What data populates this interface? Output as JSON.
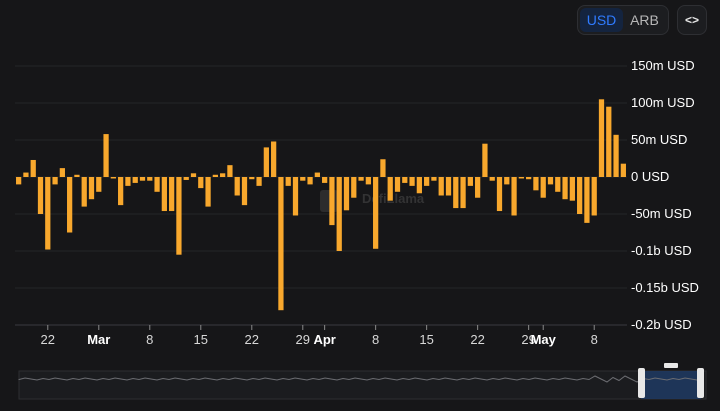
{
  "controls": {
    "currency_options": [
      "USD",
      "ARB"
    ],
    "active_currency": "USD",
    "embed_icon": "<>"
  },
  "watermark": "DefiLlama",
  "colors": {
    "bar": "#f8a82d",
    "background": "#161618",
    "active": "#2f7bff"
  },
  "chart_data": {
    "type": "bar",
    "ylabel_unit": "USD",
    "ylim": [
      -200000000,
      150000000
    ],
    "y_ticks": [
      {
        "value": 150000000,
        "label": "150m USD"
      },
      {
        "value": 100000000,
        "label": "100m USD"
      },
      {
        "value": 50000000,
        "label": "50m USD"
      },
      {
        "value": 0,
        "label": "0 USD"
      },
      {
        "value": -50000000,
        "label": "-50m USD"
      },
      {
        "value": -100000000,
        "label": "-0.1b USD"
      },
      {
        "value": -150000000,
        "label": "-0.15b USD"
      },
      {
        "value": -200000000,
        "label": "-0.2b USD"
      }
    ],
    "x_ticks": [
      {
        "index": 4,
        "label": "22",
        "month": false
      },
      {
        "index": 11,
        "label": "Mar",
        "month": true
      },
      {
        "index": 18,
        "label": "8",
        "month": false
      },
      {
        "index": 25,
        "label": "15",
        "month": false
      },
      {
        "index": 32,
        "label": "22",
        "month": false
      },
      {
        "index": 39,
        "label": "29",
        "month": false
      },
      {
        "index": 42,
        "label": "Apr",
        "month": true
      },
      {
        "index": 49,
        "label": "8",
        "month": false
      },
      {
        "index": 56,
        "label": "15",
        "month": false
      },
      {
        "index": 63,
        "label": "22",
        "month": false
      },
      {
        "index": 70,
        "label": "29",
        "month": false
      },
      {
        "index": 72,
        "label": "May",
        "month": true
      },
      {
        "index": 79,
        "label": "8",
        "month": false
      }
    ],
    "values": [
      -10000000,
      6000000,
      23000000,
      -50000000,
      -98000000,
      -10000000,
      12000000,
      -75000000,
      3000000,
      -40000000,
      -30000000,
      -20000000,
      58000000,
      -2000000,
      -38000000,
      -12000000,
      -8000000,
      -5000000,
      -5000000,
      -20000000,
      -46000000,
      -46000000,
      -105000000,
      -4000000,
      5000000,
      -15000000,
      -40000000,
      3000000,
      5000000,
      16000000,
      -25000000,
      -38000000,
      -3000000,
      -12000000,
      40000000,
      48000000,
      -180000000,
      -12000000,
      -52000000,
      -5000000,
      -10000000,
      6000000,
      -8000000,
      -65000000,
      -100000000,
      -45000000,
      -28000000,
      -5000000,
      -10000000,
      -97000000,
      24000000,
      -32000000,
      -20000000,
      -8000000,
      -12000000,
      -22000000,
      -12000000,
      -5000000,
      -25000000,
      -25000000,
      -42000000,
      -42000000,
      -12000000,
      -28000000,
      45000000,
      -5000000,
      -46000000,
      -10000000,
      -52000000,
      -2000000,
      -3000000,
      -18000000,
      -28000000,
      -10000000,
      -20000000,
      -30000000,
      -32000000,
      -50000000,
      -62000000,
      -52000000,
      105000000,
      95000000,
      57000000,
      18000000
    ],
    "x_range": [
      -0.5,
      83.5
    ]
  }
}
